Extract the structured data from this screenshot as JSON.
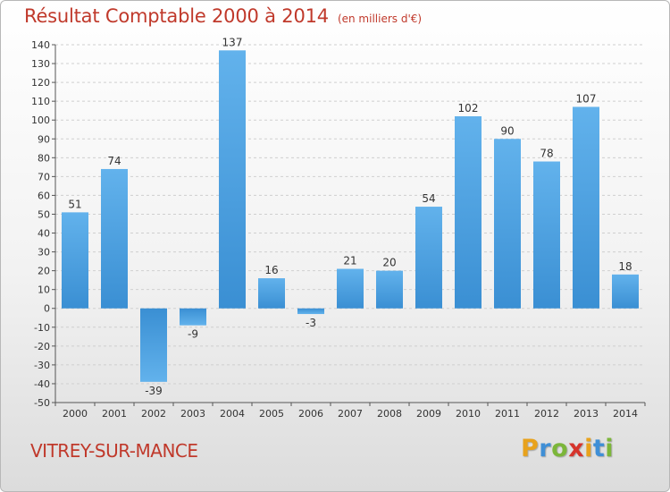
{
  "header": {
    "title": "Résultat Comptable 2000 à 2014",
    "unit": "(en milliers d'€)"
  },
  "footer": {
    "commune": "VITREY-SUR-MANCE",
    "logo_letters": [
      "P",
      "r",
      "o",
      "x",
      "i",
      "t",
      "i"
    ],
    "logo_colors": [
      "#e8a21c",
      "#3f8fd6",
      "#7cb63a",
      "#d6342c",
      "#e8a21c",
      "#3f8fd6",
      "#7cb63a"
    ]
  },
  "colors": {
    "bar": "#3a8fd3",
    "bar_light": "#62b2ec",
    "title": "#c0392b",
    "grid": "#cfcfcf"
  },
  "chart_data": {
    "type": "bar",
    "title": "Résultat Comptable 2000 à 2014",
    "subtitle": "(en milliers d'€)",
    "xlabel": "",
    "ylabel": "",
    "categories": [
      "2000",
      "2001",
      "2002",
      "2003",
      "2004",
      "2005",
      "2006",
      "2007",
      "2008",
      "2009",
      "2010",
      "2011",
      "2012",
      "2013",
      "2014"
    ],
    "values": [
      51,
      74,
      -39,
      -9,
      137,
      16,
      -3,
      21,
      20,
      54,
      102,
      90,
      78,
      107,
      18
    ],
    "data_labels": [
      "51",
      "74",
      "-39",
      "-9",
      "137",
      "16",
      "-3",
      "21",
      "20",
      "54",
      "102",
      "90",
      "78",
      "107",
      "18"
    ],
    "ylim": [
      -50,
      140
    ],
    "y_ticks": [
      -50,
      -40,
      -30,
      -20,
      -10,
      0,
      10,
      20,
      30,
      40,
      50,
      60,
      70,
      80,
      90,
      100,
      110,
      120,
      130,
      140
    ],
    "y_tick_labels": [
      "-50",
      "-40",
      "-30",
      "-20",
      "-10",
      "0",
      "10",
      "20",
      "30",
      "40",
      "50",
      "60",
      "70",
      "80",
      "90",
      "100",
      "110",
      "120",
      "130",
      "140"
    ],
    "grid": true,
    "legend": "none"
  }
}
